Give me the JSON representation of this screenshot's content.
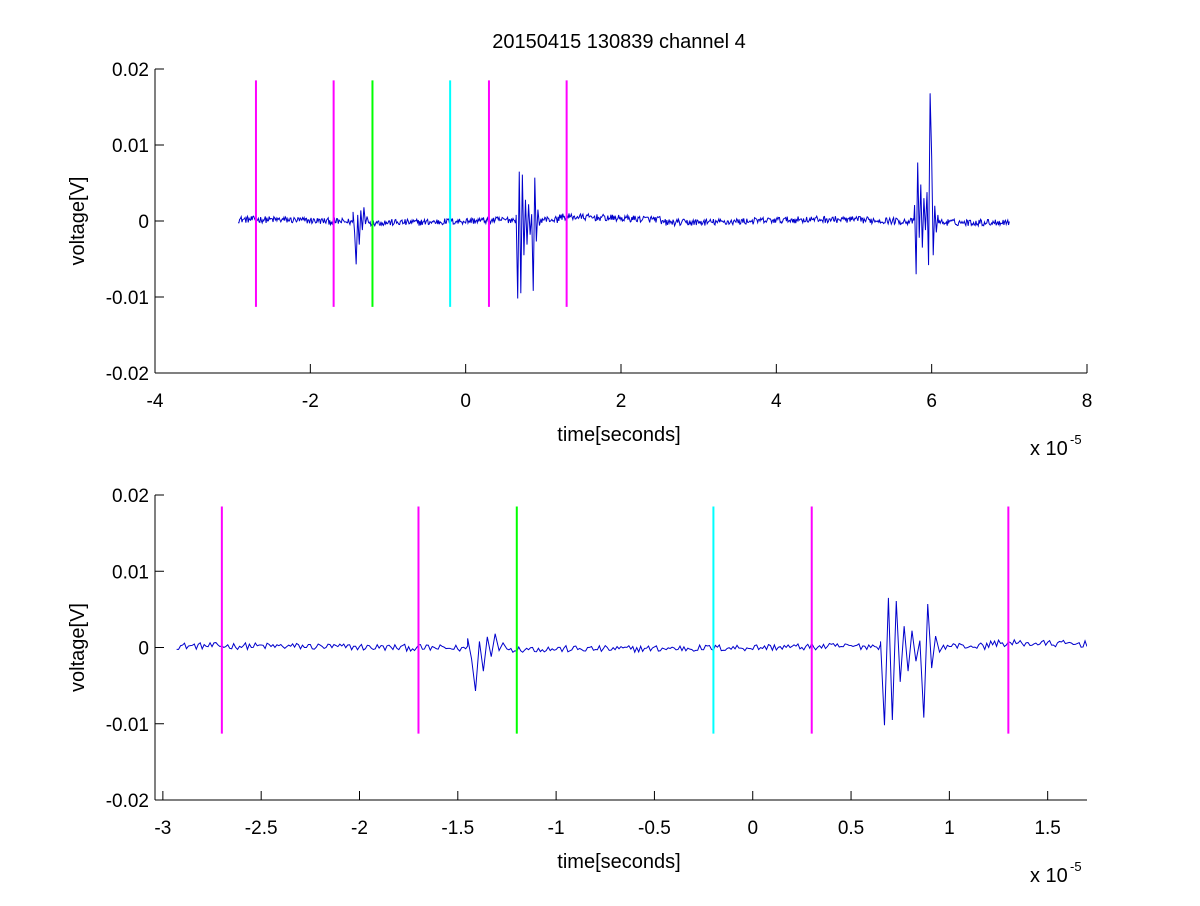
{
  "figure": {
    "title": "20150415 130839 channel 4",
    "background": "#ffffff"
  },
  "chart_data": [
    {
      "type": "line",
      "title": "20150415 130839 channel 4",
      "xlabel": "time[seconds]",
      "ylabel": "voltage[V]",
      "x_scale_label": "x 10",
      "x_scale_exponent": "-5",
      "xlim": [
        -4,
        8
      ],
      "ylim": [
        -0.02,
        0.02
      ],
      "x_ticks": [
        -4,
        -2,
        0,
        2,
        4,
        6,
        8
      ],
      "x_tick_labels": [
        "-4",
        "-2",
        "0",
        "2",
        "4",
        "6",
        "8"
      ],
      "y_ticks": [
        -0.02,
        -0.01,
        0,
        0.01,
        0.02
      ],
      "y_tick_labels": [
        "-0.02",
        "-0.01",
        "0",
        "0.01",
        "0.02"
      ],
      "grid": false,
      "series": [
        {
          "color": "#0000cc",
          "x_start": -2.93,
          "x_end": 7.0,
          "baseline": 0,
          "bursts": [
            {
              "x": [
                -1.45,
                -1.43,
                -1.41,
                -1.39,
                -1.37,
                -1.35,
                -1.33,
                -1.31,
                -1.29,
                -1.27,
                -1.25
              ],
              "y": [
                0.0012,
                -0.0015,
                -0.0057,
                0.0008,
                -0.0031,
                0.0014,
                -0.0012,
                0.0018,
                -0.0004,
                0.0006,
                -0.0002
              ]
            },
            {
              "x": [
                0.65,
                0.67,
                0.69,
                0.71,
                0.73,
                0.75,
                0.77,
                0.79,
                0.81,
                0.83,
                0.85,
                0.87,
                0.89,
                0.91,
                0.93,
                0.95,
                0.97
              ],
              "y": [
                0.0008,
                -0.0102,
                0.0065,
                -0.0095,
                0.0061,
                -0.0045,
                0.0028,
                -0.0031,
                0.0022,
                -0.0018,
                0.0009,
                -0.0092,
                0.0057,
                -0.0027,
                0.0015,
                -0.0006,
                0.0003
              ]
            },
            {
              "x": [
                5.78,
                5.8,
                5.82,
                5.84,
                5.86,
                5.88,
                5.9,
                5.92,
                5.94,
                5.96,
                5.98,
                6.0,
                6.02,
                6.04,
                6.06,
                6.08
              ],
              "y": [
                0.0021,
                -0.007,
                0.0077,
                -0.0022,
                0.0048,
                -0.0035,
                0.003,
                -0.0012,
                0.0038,
                -0.0058,
                0.0168,
                0.0085,
                -0.0045,
                0.002,
                -0.0015,
                0.0008
              ]
            }
          ]
        }
      ],
      "markers": [
        {
          "x": -2.7,
          "color": "#ff00ff",
          "y_range": [
            -0.0113,
            0.0185
          ]
        },
        {
          "x": -1.7,
          "color": "#ff00ff",
          "y_range": [
            -0.0113,
            0.0185
          ]
        },
        {
          "x": -1.2,
          "color": "#00ff00",
          "y_range": [
            -0.0113,
            0.0185
          ]
        },
        {
          "x": -0.2,
          "color": "#00ffff",
          "y_range": [
            -0.0113,
            0.0185
          ]
        },
        {
          "x": 0.3,
          "color": "#ff00ff",
          "y_range": [
            -0.0113,
            0.0185
          ]
        },
        {
          "x": 1.3,
          "color": "#ff00ff",
          "y_range": [
            -0.0113,
            0.0185
          ]
        }
      ]
    },
    {
      "type": "line",
      "title": "",
      "xlabel": "time[seconds]",
      "ylabel": "voltage[V]",
      "x_scale_label": "x 10",
      "x_scale_exponent": "-5",
      "xlim": [
        -3.04,
        1.7
      ],
      "ylim": [
        -0.02,
        0.02
      ],
      "x_ticks": [
        -3,
        -2.5,
        -2,
        -1.5,
        -1,
        -0.5,
        0,
        0.5,
        1,
        1.5
      ],
      "x_tick_labels": [
        "-3",
        "-2.5",
        "-2",
        "-1.5",
        "-1",
        "-0.5",
        "0",
        "0.5",
        "1",
        "1.5"
      ],
      "y_ticks": [
        -0.02,
        -0.01,
        0,
        0.01,
        0.02
      ],
      "y_tick_labels": [
        "-0.02",
        "-0.01",
        "0",
        "0.01",
        "0.02"
      ],
      "grid": false,
      "series": [
        {
          "color": "#0000cc",
          "x_start": -2.93,
          "x_end": 1.7,
          "baseline": 0,
          "bursts": [
            {
              "x": [
                -1.45,
                -1.43,
                -1.41,
                -1.39,
                -1.37,
                -1.35,
                -1.33,
                -1.31,
                -1.29,
                -1.27,
                -1.25
              ],
              "y": [
                0.0012,
                -0.0015,
                -0.0057,
                0.0008,
                -0.0031,
                0.0014,
                -0.0012,
                0.0018,
                -0.0004,
                0.0006,
                -0.0002
              ]
            },
            {
              "x": [
                0.65,
                0.67,
                0.69,
                0.71,
                0.73,
                0.75,
                0.77,
                0.79,
                0.81,
                0.83,
                0.85,
                0.87,
                0.89,
                0.91,
                0.93,
                0.95,
                0.97
              ],
              "y": [
                0.0008,
                -0.0102,
                0.0065,
                -0.0095,
                0.0061,
                -0.0045,
                0.0028,
                -0.0031,
                0.0022,
                -0.0018,
                0.0009,
                -0.0092,
                0.0057,
                -0.0027,
                0.0015,
                -0.0006,
                0.0003
              ]
            }
          ]
        }
      ],
      "markers": [
        {
          "x": -2.7,
          "color": "#ff00ff",
          "y_range": [
            -0.0113,
            0.0185
          ]
        },
        {
          "x": -1.7,
          "color": "#ff00ff",
          "y_range": [
            -0.0113,
            0.0185
          ]
        },
        {
          "x": -1.2,
          "color": "#00ff00",
          "y_range": [
            -0.0113,
            0.0185
          ]
        },
        {
          "x": -0.2,
          "color": "#00ffff",
          "y_range": [
            -0.0113,
            0.0185
          ]
        },
        {
          "x": 0.3,
          "color": "#ff00ff",
          "y_range": [
            -0.0113,
            0.0185
          ]
        },
        {
          "x": 1.3,
          "color": "#ff00ff",
          "y_range": [
            -0.0113,
            0.0185
          ]
        }
      ]
    }
  ]
}
